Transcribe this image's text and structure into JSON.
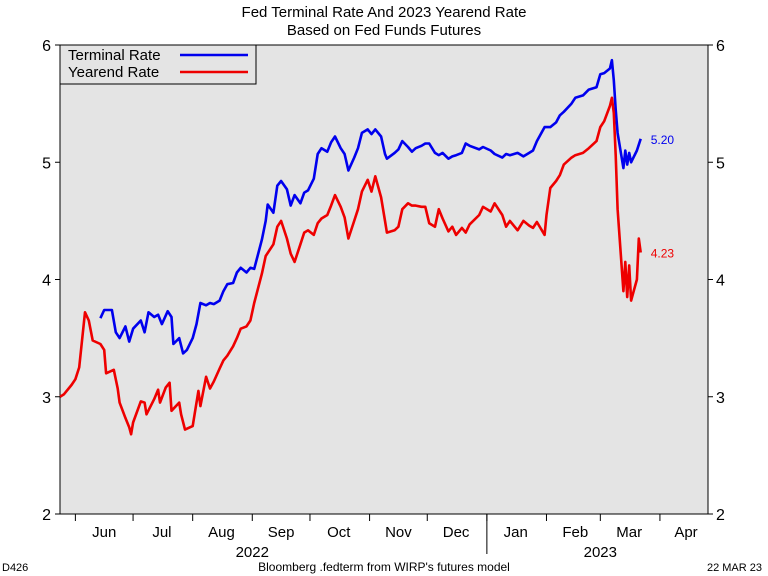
{
  "header": {
    "title": "Fed Terminal Rate And 2023 Yearend Rate",
    "subtitle": "Based on Fed Funds Futures"
  },
  "footer": {
    "code": "D426",
    "source": "Bloomberg .fedterm from WIRP's futures model",
    "date": "22 MAR 23"
  },
  "colors": {
    "terminal": "#0000ee",
    "yearend": "#ee0000",
    "plot_bg": "#e4e4e4"
  },
  "chart_data": {
    "type": "line",
    "title": "Fed Terminal Rate And 2023 Yearend Rate",
    "subtitle": "Based on Fed Funds Futures",
    "xlabel": "",
    "ylabel": "",
    "x_range": [
      "2022-05-24",
      "2023-04-26"
    ],
    "ylim": [
      2,
      6
    ],
    "y_ticks": [
      2,
      3,
      4,
      5,
      6
    ],
    "y_axis_sides": [
      "left",
      "right"
    ],
    "grid": false,
    "legend_position": "top-left",
    "x_tick_labels": [
      "Jun",
      "Jul",
      "Aug",
      "Sep",
      "Oct",
      "Nov",
      "Dec",
      "Jan",
      "Feb",
      "Mar",
      "Apr"
    ],
    "year_labels": [
      {
        "label": "2022",
        "at": "2022-09-01"
      },
      {
        "label": "2023",
        "at": "2023-03-01"
      }
    ],
    "series": [
      {
        "name": "Terminal Rate",
        "last_label": "5.20",
        "points": [
          [
            "2022-06-14",
            3.67
          ],
          [
            "2022-06-16",
            3.74
          ],
          [
            "2022-06-20",
            3.74
          ],
          [
            "2022-06-22",
            3.55
          ],
          [
            "2022-06-24",
            3.5
          ],
          [
            "2022-06-27",
            3.6
          ],
          [
            "2022-06-29",
            3.47
          ],
          [
            "2022-07-01",
            3.58
          ],
          [
            "2022-07-05",
            3.65
          ],
          [
            "2022-07-07",
            3.55
          ],
          [
            "2022-07-09",
            3.72
          ],
          [
            "2022-07-12",
            3.68
          ],
          [
            "2022-07-14",
            3.7
          ],
          [
            "2022-07-16",
            3.62
          ],
          [
            "2022-07-19",
            3.73
          ],
          [
            "2022-07-21",
            3.68
          ],
          [
            "2022-07-22",
            3.45
          ],
          [
            "2022-07-25",
            3.5
          ],
          [
            "2022-07-27",
            3.37
          ],
          [
            "2022-07-29",
            3.4
          ],
          [
            "2022-08-01",
            3.5
          ],
          [
            "2022-08-03",
            3.62
          ],
          [
            "2022-08-05",
            3.8
          ],
          [
            "2022-08-08",
            3.78
          ],
          [
            "2022-08-10",
            3.8
          ],
          [
            "2022-08-12",
            3.79
          ],
          [
            "2022-08-15",
            3.82
          ],
          [
            "2022-08-17",
            3.9
          ],
          [
            "2022-08-19",
            3.96
          ],
          [
            "2022-08-22",
            3.97
          ],
          [
            "2022-08-24",
            4.06
          ],
          [
            "2022-08-26",
            4.1
          ],
          [
            "2022-08-29",
            4.06
          ],
          [
            "2022-08-31",
            4.1
          ],
          [
            "2022-09-02",
            4.09
          ],
          [
            "2022-09-06",
            4.34
          ],
          [
            "2022-09-08",
            4.5
          ],
          [
            "2022-09-09",
            4.64
          ],
          [
            "2022-09-12",
            4.57
          ],
          [
            "2022-09-14",
            4.8
          ],
          [
            "2022-09-16",
            4.84
          ],
          [
            "2022-09-19",
            4.77
          ],
          [
            "2022-09-21",
            4.63
          ],
          [
            "2022-09-23",
            4.72
          ],
          [
            "2022-09-26",
            4.65
          ],
          [
            "2022-09-28",
            4.74
          ],
          [
            "2022-09-30",
            4.76
          ],
          [
            "2022-10-03",
            4.86
          ],
          [
            "2022-10-05",
            5.07
          ],
          [
            "2022-10-07",
            5.12
          ],
          [
            "2022-10-10",
            5.09
          ],
          [
            "2022-10-12",
            5.17
          ],
          [
            "2022-10-14",
            5.22
          ],
          [
            "2022-10-17",
            5.12
          ],
          [
            "2022-10-19",
            5.07
          ],
          [
            "2022-10-21",
            4.93
          ],
          [
            "2022-10-24",
            5.04
          ],
          [
            "2022-10-26",
            5.12
          ],
          [
            "2022-10-28",
            5.25
          ],
          [
            "2022-10-31",
            5.28
          ],
          [
            "2022-11-02",
            5.24
          ],
          [
            "2022-11-04",
            5.28
          ],
          [
            "2022-11-07",
            5.22
          ],
          [
            "2022-11-09",
            5.07
          ],
          [
            "2022-11-10",
            5.03
          ],
          [
            "2022-11-14",
            5.08
          ],
          [
            "2022-11-16",
            5.11
          ],
          [
            "2022-11-18",
            5.18
          ],
          [
            "2022-11-21",
            5.13
          ],
          [
            "2022-11-23",
            5.09
          ],
          [
            "2022-11-25",
            5.12
          ],
          [
            "2022-11-28",
            5.14
          ],
          [
            "2022-11-30",
            5.16
          ],
          [
            "2022-12-02",
            5.16
          ],
          [
            "2022-12-05",
            5.08
          ],
          [
            "2022-12-07",
            5.06
          ],
          [
            "2022-12-09",
            5.08
          ],
          [
            "2022-12-12",
            5.03
          ],
          [
            "2022-12-14",
            5.05
          ],
          [
            "2022-12-16",
            5.06
          ],
          [
            "2022-12-19",
            5.08
          ],
          [
            "2022-12-21",
            5.16
          ],
          [
            "2022-12-23",
            5.14
          ],
          [
            "2022-12-28",
            5.11
          ],
          [
            "2022-12-30",
            5.13
          ],
          [
            "2023-01-03",
            5.1
          ],
          [
            "2023-01-05",
            5.07
          ],
          [
            "2023-01-09",
            5.04
          ],
          [
            "2023-01-11",
            5.07
          ],
          [
            "2023-01-13",
            5.06
          ],
          [
            "2023-01-17",
            5.08
          ],
          [
            "2023-01-20",
            5.05
          ],
          [
            "2023-01-23",
            5.08
          ],
          [
            "2023-01-25",
            5.1
          ],
          [
            "2023-01-27",
            5.18
          ],
          [
            "2023-01-31",
            5.3
          ],
          [
            "2023-02-03",
            5.3
          ],
          [
            "2023-02-06",
            5.34
          ],
          [
            "2023-02-08",
            5.4
          ],
          [
            "2023-02-10",
            5.43
          ],
          [
            "2023-02-14",
            5.5
          ],
          [
            "2023-02-16",
            5.55
          ],
          [
            "2023-02-20",
            5.57
          ],
          [
            "2023-02-23",
            5.62
          ],
          [
            "2023-02-27",
            5.64
          ],
          [
            "2023-03-01",
            5.75
          ],
          [
            "2023-03-03",
            5.76
          ],
          [
            "2023-03-06",
            5.8
          ],
          [
            "2023-03-07",
            5.87
          ],
          [
            "2023-03-08",
            5.7
          ],
          [
            "2023-03-09",
            5.45
          ],
          [
            "2023-03-10",
            5.25
          ],
          [
            "2023-03-13",
            4.95
          ],
          [
            "2023-03-14",
            5.1
          ],
          [
            "2023-03-15",
            4.98
          ],
          [
            "2023-03-16",
            5.08
          ],
          [
            "2023-03-17",
            5.0
          ],
          [
            "2023-03-20",
            5.1
          ],
          [
            "2023-03-22",
            5.2
          ]
        ]
      },
      {
        "name": "Yearend Rate",
        "last_label": "4.23",
        "points": [
          [
            "2022-05-24",
            3.0
          ],
          [
            "2022-05-26",
            3.02
          ],
          [
            "2022-05-30",
            3.1
          ],
          [
            "2022-06-01",
            3.15
          ],
          [
            "2022-06-03",
            3.25
          ],
          [
            "2022-06-06",
            3.72
          ],
          [
            "2022-06-08",
            3.65
          ],
          [
            "2022-06-10",
            3.48
          ],
          [
            "2022-06-14",
            3.45
          ],
          [
            "2022-06-16",
            3.4
          ],
          [
            "2022-06-17",
            3.2
          ],
          [
            "2022-06-21",
            3.23
          ],
          [
            "2022-06-23",
            3.07
          ],
          [
            "2022-06-24",
            2.95
          ],
          [
            "2022-06-27",
            2.82
          ],
          [
            "2022-06-29",
            2.74
          ],
          [
            "2022-06-30",
            2.68
          ],
          [
            "2022-07-01",
            2.78
          ],
          [
            "2022-07-05",
            2.96
          ],
          [
            "2022-07-07",
            2.95
          ],
          [
            "2022-07-08",
            2.85
          ],
          [
            "2022-07-12",
            2.98
          ],
          [
            "2022-07-14",
            3.06
          ],
          [
            "2022-07-15",
            2.95
          ],
          [
            "2022-07-18",
            3.08
          ],
          [
            "2022-07-20",
            3.12
          ],
          [
            "2022-07-21",
            2.88
          ],
          [
            "2022-07-25",
            2.95
          ],
          [
            "2022-07-26",
            2.85
          ],
          [
            "2022-07-28",
            2.72
          ],
          [
            "2022-08-01",
            2.75
          ],
          [
            "2022-08-02",
            2.85
          ],
          [
            "2022-08-04",
            3.05
          ],
          [
            "2022-08-05",
            2.92
          ],
          [
            "2022-08-08",
            3.17
          ],
          [
            "2022-08-10",
            3.07
          ],
          [
            "2022-08-12",
            3.13
          ],
          [
            "2022-08-15",
            3.24
          ],
          [
            "2022-08-17",
            3.31
          ],
          [
            "2022-08-19",
            3.35
          ],
          [
            "2022-08-22",
            3.43
          ],
          [
            "2022-08-24",
            3.5
          ],
          [
            "2022-08-26",
            3.58
          ],
          [
            "2022-08-29",
            3.6
          ],
          [
            "2022-08-31",
            3.65
          ],
          [
            "2022-09-02",
            3.8
          ],
          [
            "2022-09-06",
            4.05
          ],
          [
            "2022-09-08",
            4.2
          ],
          [
            "2022-09-12",
            4.3
          ],
          [
            "2022-09-14",
            4.45
          ],
          [
            "2022-09-16",
            4.5
          ],
          [
            "2022-09-19",
            4.35
          ],
          [
            "2022-09-21",
            4.22
          ],
          [
            "2022-09-23",
            4.15
          ],
          [
            "2022-09-26",
            4.3
          ],
          [
            "2022-09-28",
            4.4
          ],
          [
            "2022-09-30",
            4.42
          ],
          [
            "2022-10-03",
            4.38
          ],
          [
            "2022-10-05",
            4.48
          ],
          [
            "2022-10-07",
            4.52
          ],
          [
            "2022-10-10",
            4.55
          ],
          [
            "2022-10-12",
            4.63
          ],
          [
            "2022-10-14",
            4.72
          ],
          [
            "2022-10-17",
            4.62
          ],
          [
            "2022-10-19",
            4.53
          ],
          [
            "2022-10-21",
            4.35
          ],
          [
            "2022-10-24",
            4.5
          ],
          [
            "2022-10-26",
            4.6
          ],
          [
            "2022-10-28",
            4.75
          ],
          [
            "2022-10-31",
            4.85
          ],
          [
            "2022-11-02",
            4.75
          ],
          [
            "2022-11-04",
            4.88
          ],
          [
            "2022-11-07",
            4.7
          ],
          [
            "2022-11-09",
            4.5
          ],
          [
            "2022-11-10",
            4.4
          ],
          [
            "2022-11-14",
            4.42
          ],
          [
            "2022-11-16",
            4.45
          ],
          [
            "2022-11-18",
            4.6
          ],
          [
            "2022-11-21",
            4.65
          ],
          [
            "2022-11-23",
            4.63
          ],
          [
            "2022-11-25",
            4.63
          ],
          [
            "2022-11-28",
            4.62
          ],
          [
            "2022-11-30",
            4.62
          ],
          [
            "2022-12-02",
            4.48
          ],
          [
            "2022-12-05",
            4.45
          ],
          [
            "2022-12-07",
            4.6
          ],
          [
            "2022-12-09",
            4.52
          ],
          [
            "2022-12-12",
            4.41
          ],
          [
            "2022-12-14",
            4.45
          ],
          [
            "2022-12-16",
            4.38
          ],
          [
            "2022-12-19",
            4.44
          ],
          [
            "2022-12-21",
            4.4
          ],
          [
            "2022-12-23",
            4.47
          ],
          [
            "2022-12-28",
            4.55
          ],
          [
            "2022-12-30",
            4.62
          ],
          [
            "2023-01-03",
            4.58
          ],
          [
            "2023-01-05",
            4.65
          ],
          [
            "2023-01-09",
            4.55
          ],
          [
            "2023-01-11",
            4.45
          ],
          [
            "2023-01-13",
            4.5
          ],
          [
            "2023-01-17",
            4.42
          ],
          [
            "2023-01-20",
            4.5
          ],
          [
            "2023-01-23",
            4.46
          ],
          [
            "2023-01-25",
            4.44
          ],
          [
            "2023-01-27",
            4.49
          ],
          [
            "2023-01-31",
            4.38
          ],
          [
            "2023-02-01",
            4.55
          ],
          [
            "2023-02-03",
            4.78
          ],
          [
            "2023-02-06",
            4.84
          ],
          [
            "2023-02-08",
            4.89
          ],
          [
            "2023-02-10",
            4.98
          ],
          [
            "2023-02-14",
            5.04
          ],
          [
            "2023-02-16",
            5.06
          ],
          [
            "2023-02-20",
            5.08
          ],
          [
            "2023-02-23",
            5.12
          ],
          [
            "2023-02-27",
            5.18
          ],
          [
            "2023-03-01",
            5.3
          ],
          [
            "2023-03-03",
            5.35
          ],
          [
            "2023-03-06",
            5.48
          ],
          [
            "2023-03-07",
            5.55
          ],
          [
            "2023-03-08",
            5.42
          ],
          [
            "2023-03-09",
            5.06
          ],
          [
            "2023-03-10",
            4.6
          ],
          [
            "2023-03-13",
            3.9
          ],
          [
            "2023-03-14",
            4.15
          ],
          [
            "2023-03-15",
            3.85
          ],
          [
            "2023-03-16",
            4.12
          ],
          [
            "2023-03-17",
            3.82
          ],
          [
            "2023-03-20",
            4.0
          ],
          [
            "2023-03-21",
            4.35
          ],
          [
            "2023-03-22",
            4.23
          ]
        ]
      }
    ]
  }
}
